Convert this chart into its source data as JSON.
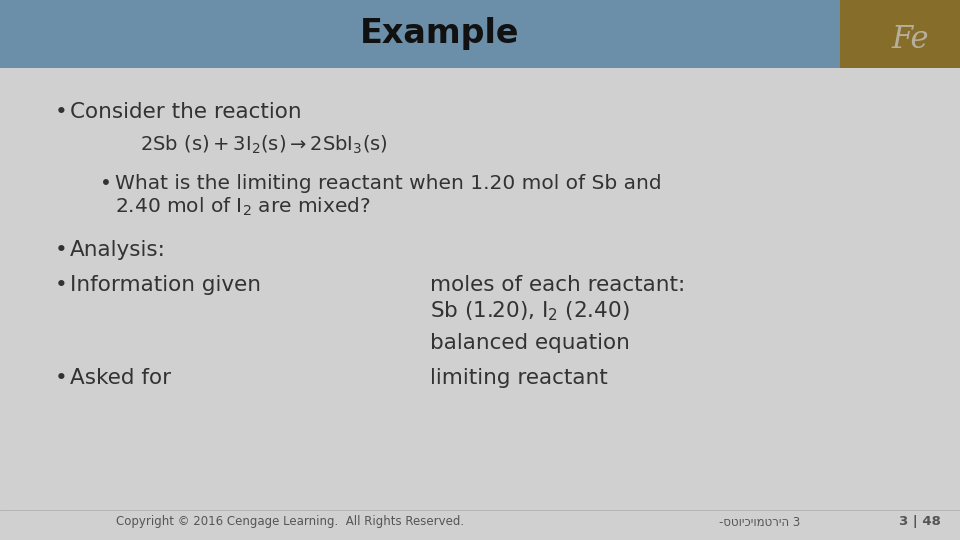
{
  "title": "Example",
  "title_bg_color": "#6b8fa8",
  "title_text_color": "#111111",
  "body_bg_color": "#d0d0d0",
  "slide_bg_color": "#d0d0d0",
  "bullet1": "Consider the reaction",
  "equation": "$2\\mathrm{Sb\\ (s) + 3I_2(s) \\rightarrow 2SbI_3(s)}$",
  "bullet2_line1": "What is the limiting reactant when 1.20 mol of Sb and",
  "bullet2_line2": "2.40 mol of I$_2$ are mixed?",
  "bullet3": "Analysis:",
  "bullet4_left": "Information given",
  "bullet4_right_line1": "moles of each reactant:",
  "bullet4_right_line2": "Sb (1.20), I$_2$ (2.40)",
  "bullet5_right": "balanced equation",
  "bullet6_left": "Asked for",
  "bullet6_right": "limiting reactant",
  "footer_left": "Copyright © 2016 Cengage Learning.  All Rights Reserved.",
  "footer_right": "-סטויכיומטריה 3",
  "footer_page": "3 | 48",
  "text_color": "#333333",
  "footer_color": "#555555",
  "title_fontsize": 24,
  "body_fontsize": 15.5,
  "eq_fontsize": 14,
  "footer_fontsize": 8.5
}
